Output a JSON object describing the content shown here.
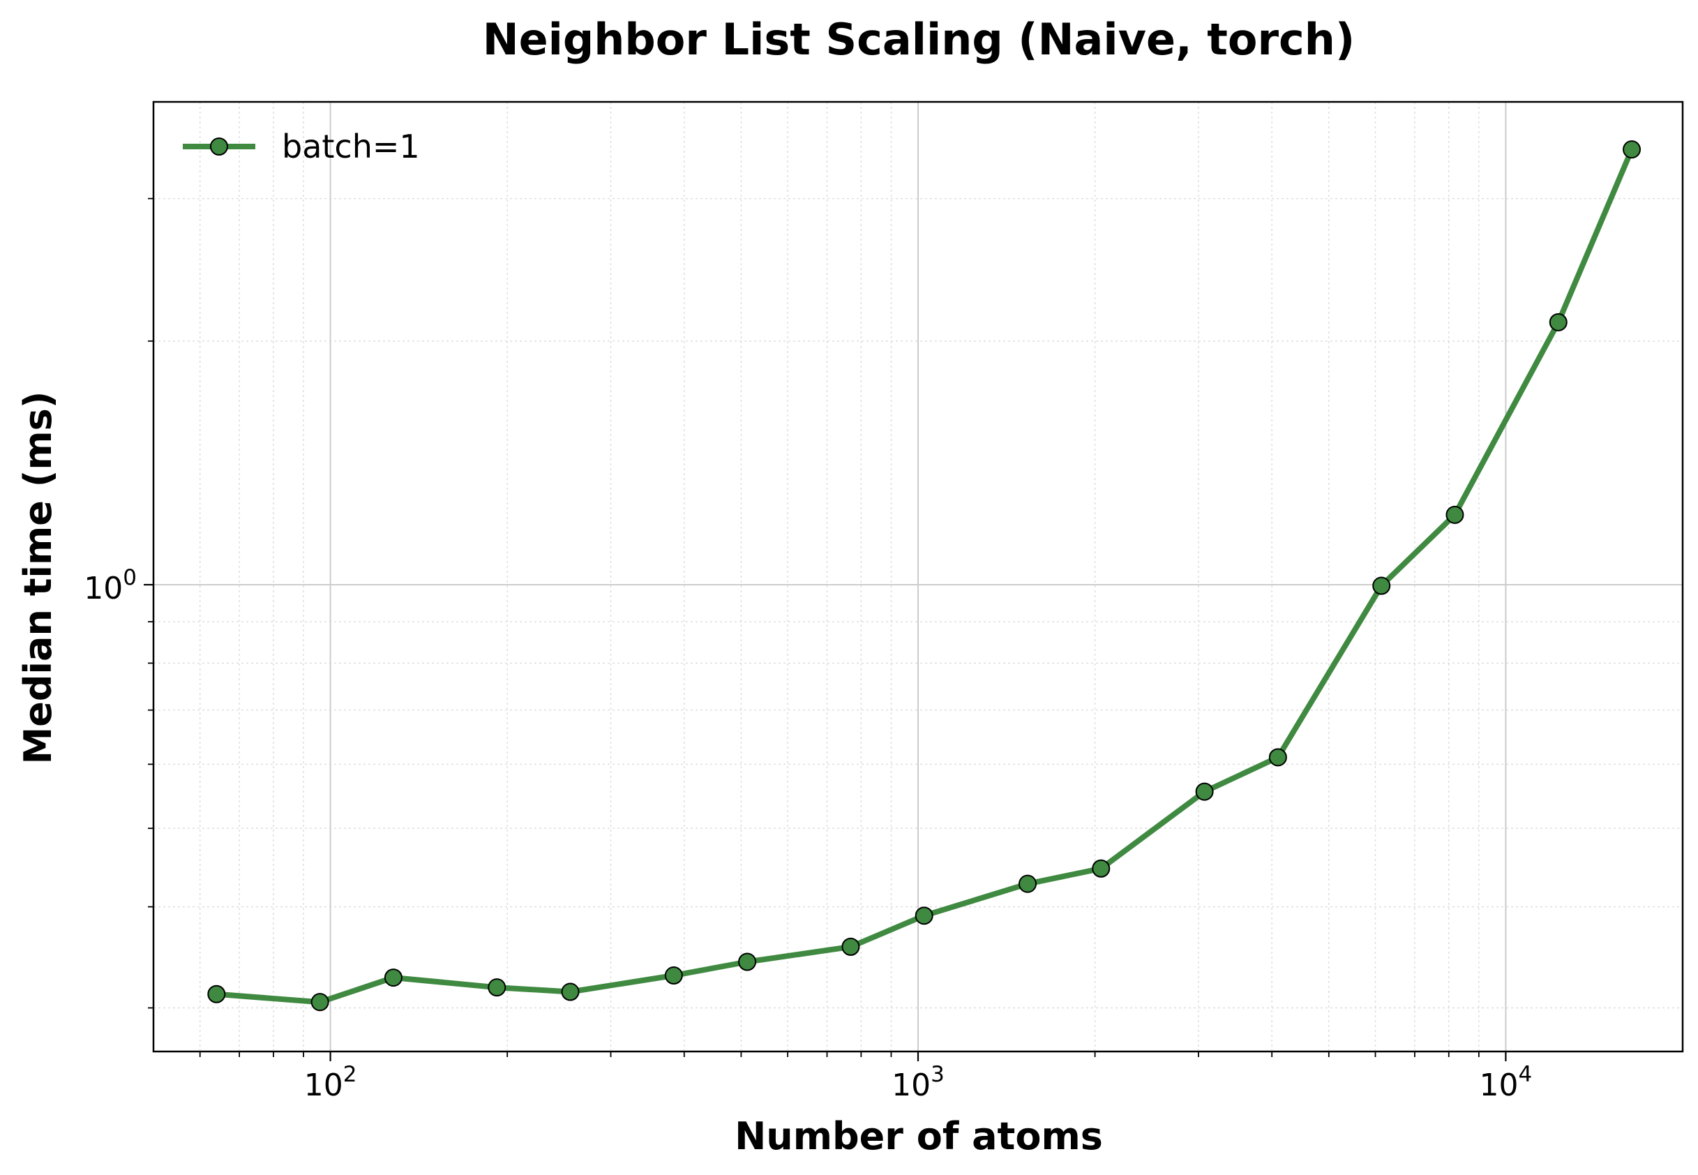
{
  "chart_data": {
    "type": "line",
    "title": "Neighbor List Scaling (Naive, torch)",
    "xlabel": "Number of atoms",
    "ylabel": "Median time (ms)",
    "xscale": "log",
    "yscale": "log",
    "xlim": [
      50,
      20000
    ],
    "ylim": [
      0.265,
      3.95
    ],
    "x_ticks": [
      {
        "base": "10",
        "exp": "2",
        "value": 100
      },
      {
        "base": "10",
        "exp": "3",
        "value": 1000
      },
      {
        "base": "10",
        "exp": "4",
        "value": 10000
      }
    ],
    "y_ticks": [
      {
        "base": "10",
        "exp": "0",
        "value": 1
      }
    ],
    "grid": true,
    "legend_position": "top-left",
    "series": [
      {
        "name": "batch=1",
        "color": "#3f8a40",
        "marker": "circle",
        "x": [
          64,
          96,
          128,
          192,
          256,
          384,
          512,
          768,
          1024,
          1536,
          2048,
          3072,
          4096,
          6144,
          8192,
          12288,
          16384
        ],
        "y": [
          0.312,
          0.305,
          0.327,
          0.318,
          0.314,
          0.329,
          0.342,
          0.357,
          0.39,
          0.427,
          0.446,
          0.555,
          0.612,
          0.997,
          1.22,
          2.11,
          3.45
        ]
      }
    ]
  }
}
